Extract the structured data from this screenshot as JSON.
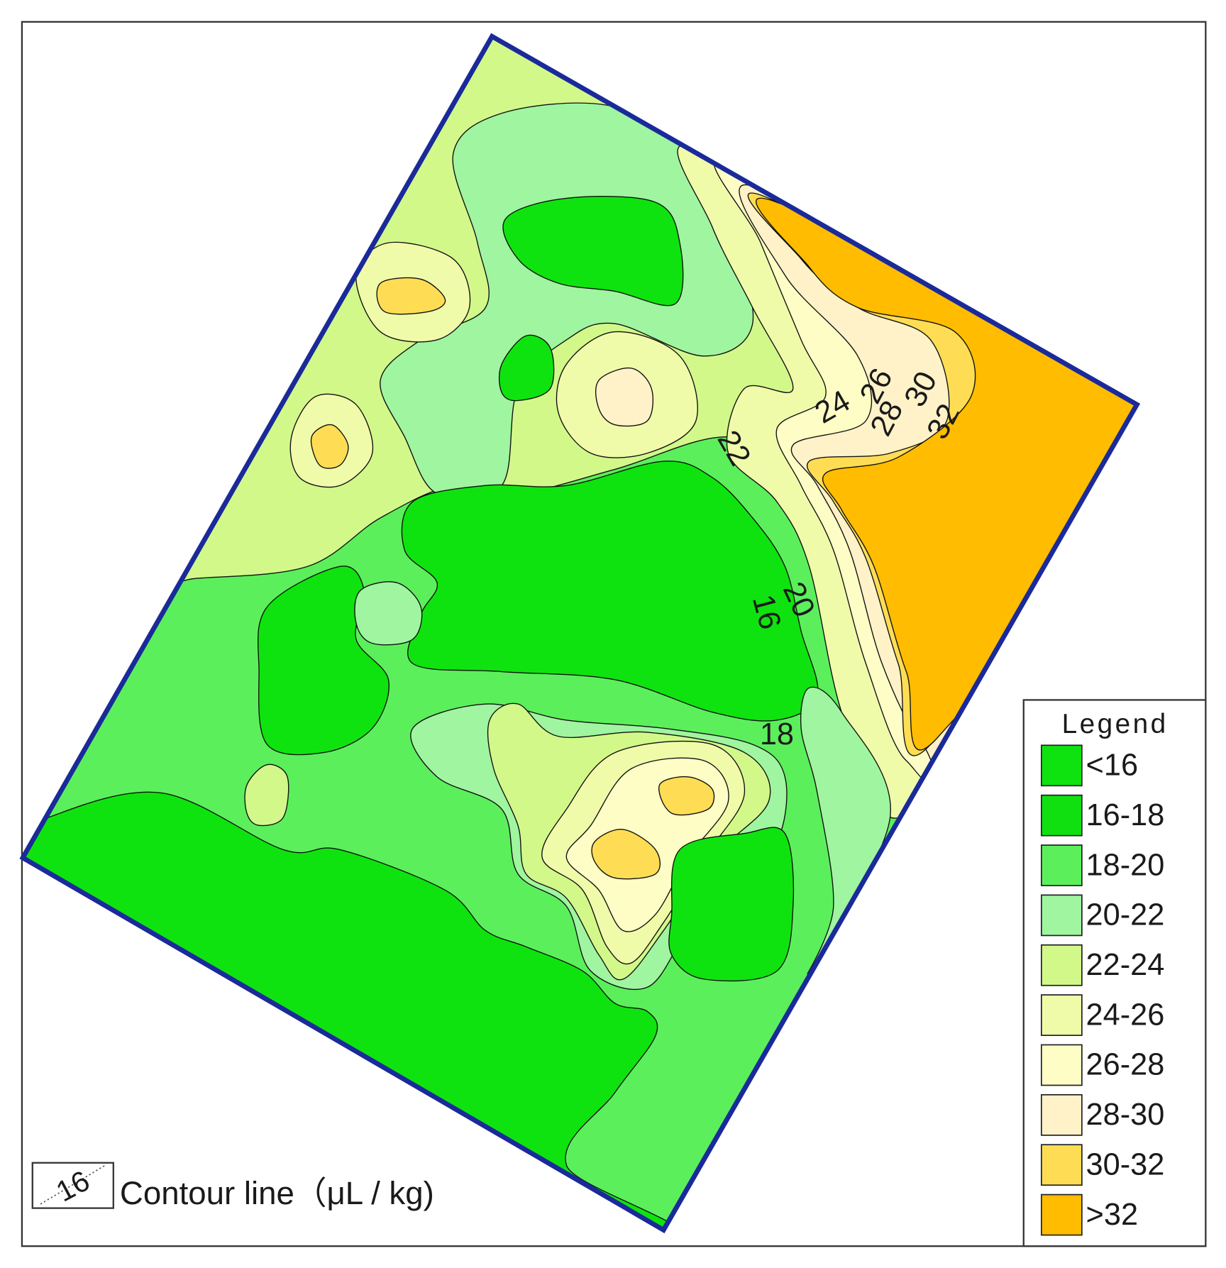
{
  "legend": {
    "title": "Legend",
    "items": [
      {
        "label": "<16",
        "color": "#0fe30f"
      },
      {
        "label": "16-18",
        "color": "#10e010"
      },
      {
        "label": "18-20",
        "color": "#5cef5c"
      },
      {
        "label": "20-22",
        "color": "#a0f5a0"
      },
      {
        "label": "22-24",
        "color": "#d2f88a"
      },
      {
        "label": "24-26",
        "color": "#f0fbaa"
      },
      {
        "label": "26-28",
        "color": "#fdfdc5"
      },
      {
        "label": "28-30",
        "color": "#fff2c8"
      },
      {
        "label": "30-32",
        "color": "#fedd55"
      },
      {
        "label": ">32",
        "color": "#ffbc00"
      }
    ]
  },
  "contour_labels": [
    "24",
    "26",
    "28",
    "30",
    "32",
    "22",
    "20",
    "16",
    "18"
  ],
  "key": {
    "sample": "16",
    "label": "Contour line（μL / kg)"
  }
}
